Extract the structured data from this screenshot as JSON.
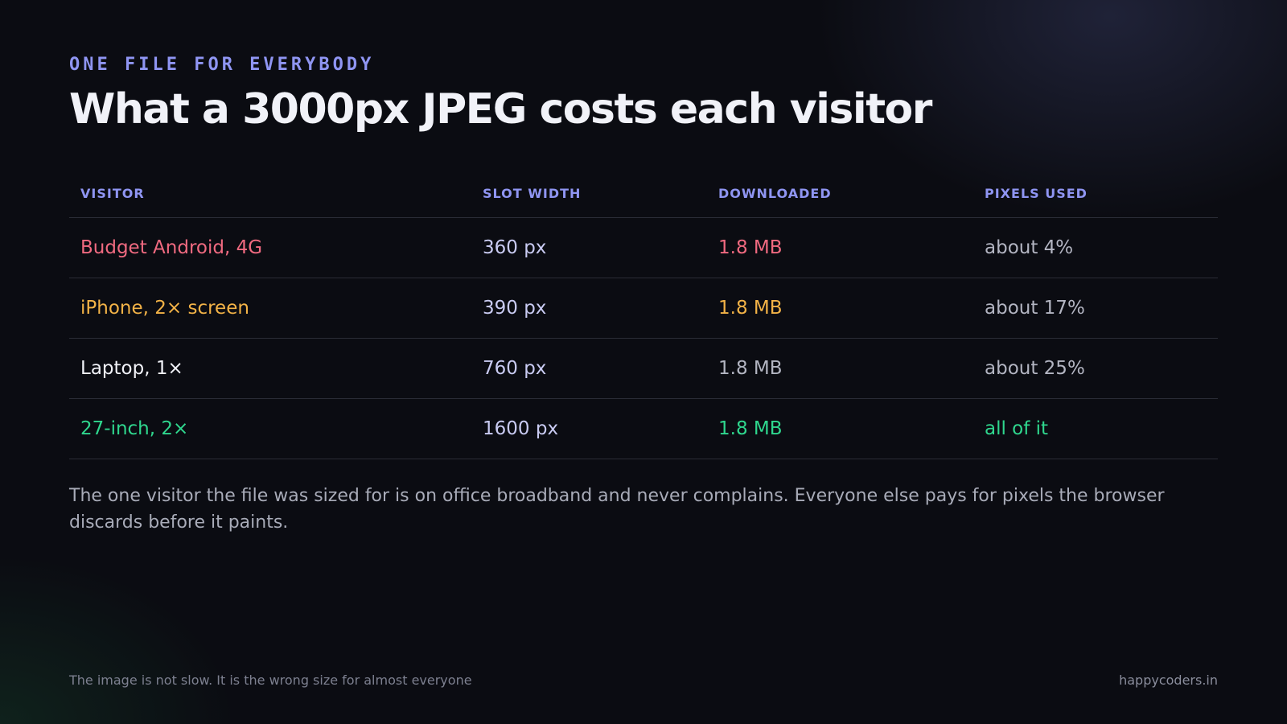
{
  "header": {
    "eyebrow": "ONE FILE FOR EVERYBODY",
    "title": "What a 3000px JPEG costs each visitor"
  },
  "table": {
    "columns": [
      "VISITOR",
      "SLOT WIDTH",
      "DOWNLOADED",
      "PIXELS USED"
    ],
    "rows": [
      {
        "visitor": "Budget Android, 4G",
        "slot_width": "360 px",
        "downloaded": "1.8 MB",
        "pixels_used": "about 4%"
      },
      {
        "visitor": "iPhone, 2× screen",
        "slot_width": "390 px",
        "downloaded": "1.8 MB",
        "pixels_used": "about 17%"
      },
      {
        "visitor": "Laptop, 1×",
        "slot_width": "760 px",
        "downloaded": "1.8 MB",
        "pixels_used": "about 25%"
      },
      {
        "visitor": "27-inch, 2×",
        "slot_width": "1600 px",
        "downloaded": "1.8 MB",
        "pixels_used": "all of it"
      }
    ]
  },
  "note": "The one visitor the file was sized for is on office broadband and never complains. Everyone else pays for pixels the browser discards before it paints.",
  "footer": {
    "caption": "The image is not slow. It is the wrong size for almost everyone",
    "site": "happycoders.in"
  },
  "colors": {
    "accent": "#8f95f2",
    "red": "#f06a80",
    "amber": "#f3b347",
    "green": "#2fd78e",
    "background": "#0b0c12"
  }
}
